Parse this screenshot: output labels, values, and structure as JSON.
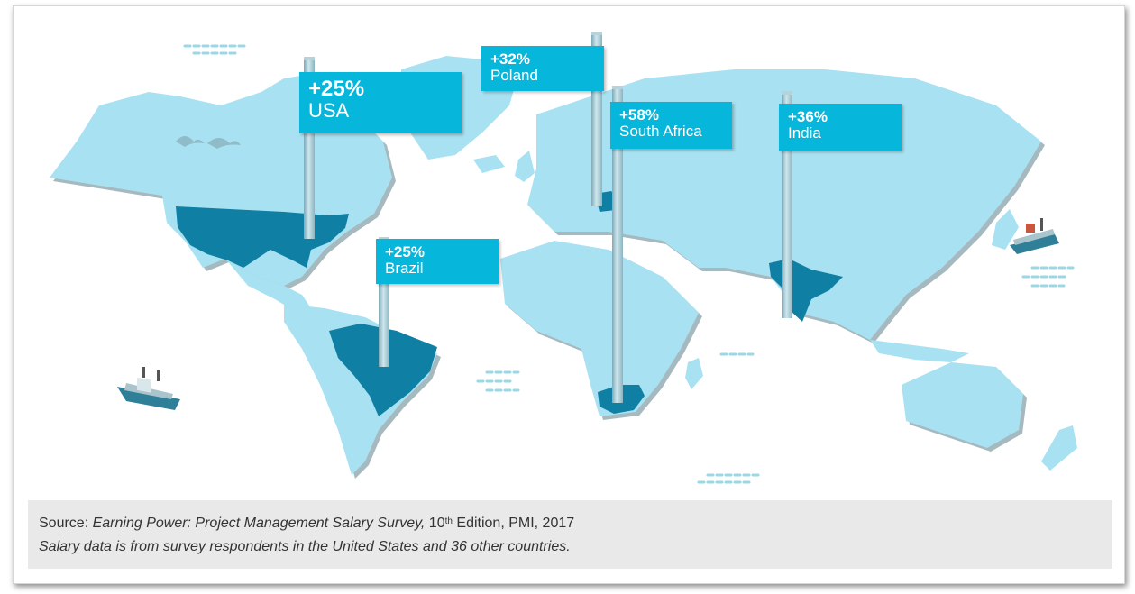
{
  "labels": [
    {
      "id": "usa",
      "pct": "+25%",
      "name": "USA"
    },
    {
      "id": "poland",
      "pct": "+32%",
      "name": "Poland"
    },
    {
      "id": "south_africa",
      "pct": "+58%",
      "name": "South Africa"
    },
    {
      "id": "india",
      "pct": "+36%",
      "name": "India"
    },
    {
      "id": "brazil",
      "pct": "+25%",
      "name": "Brazil"
    }
  ],
  "source": {
    "prefix": "Source: ",
    "title": "Earning Power: Project Management Salary Survey,",
    "edition_num": " 10",
    "edition_sup": "th",
    "edition_rest": " Edition, PMI, 2017",
    "note": "Salary data is from survey respondents in the United States and 36 other countries."
  },
  "colors": {
    "land": "#a8e2f2",
    "highlight": "#0f7fa3",
    "label_bg": "#06b6db"
  },
  "highlighted_countries": [
    "USA",
    "Brazil",
    "Poland",
    "South Africa",
    "India"
  ]
}
